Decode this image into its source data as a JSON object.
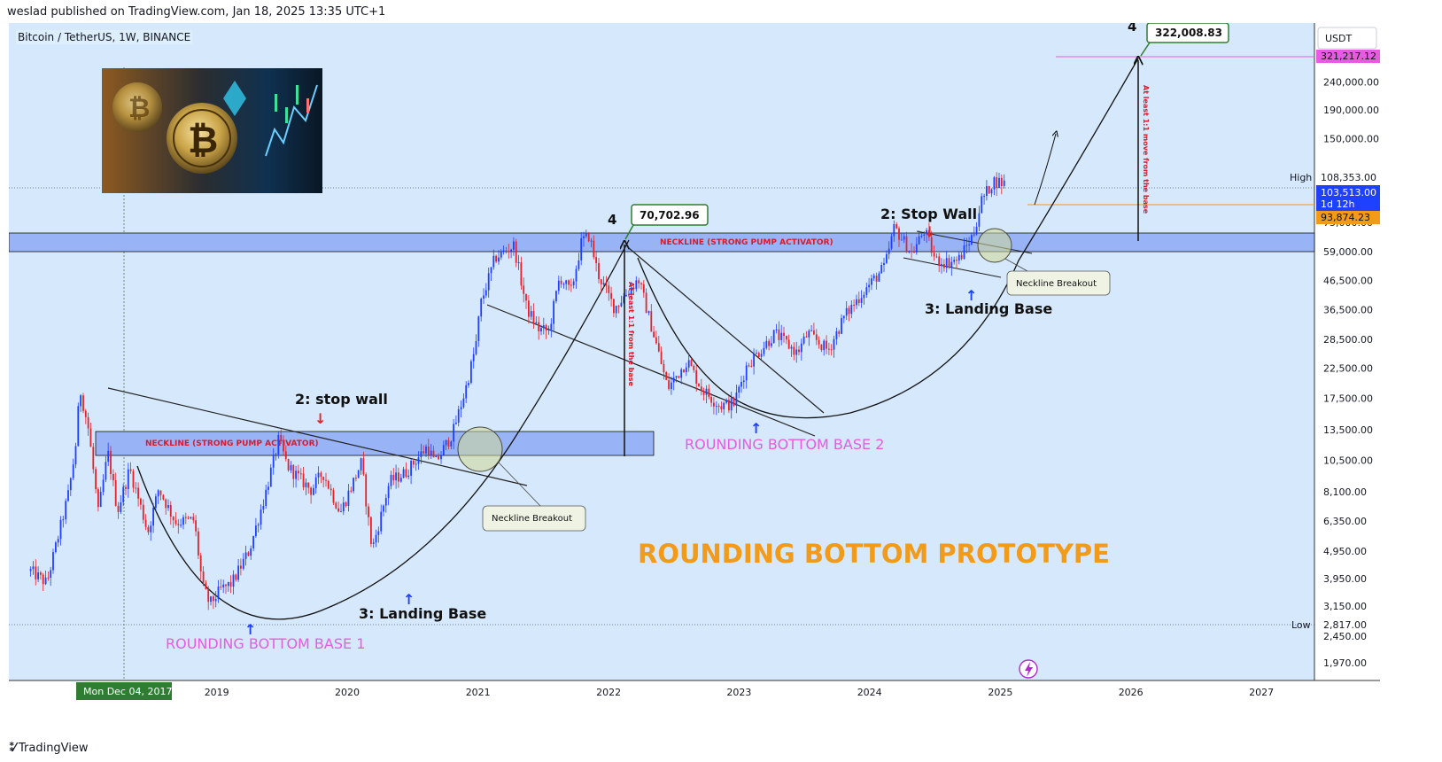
{
  "header": {
    "published": "weslad published on TradingView.com, Jan 18, 2025 13:35 UTC+1"
  },
  "symbol": {
    "title": "Bitcoin / TetherUS, 1W, BINANCE"
  },
  "footer": {
    "brand": "TradingView"
  },
  "colors": {
    "background": "#d6e8fb",
    "up": "#1e40ff",
    "down": "#e2242a",
    "neckline": "#98b4f6",
    "pink": "#e75be0",
    "orange": "#f29a19",
    "green": "#2e7d32"
  },
  "icons": [
    "tradingview-logo-icon",
    "lightning-icon",
    "bitcoin-tether-thumbnail"
  ],
  "chart_data": {
    "type": "candlestick",
    "title": "",
    "currency": "USDT",
    "y_scale": "log",
    "x_range": [
      "2017-06-01",
      "2027-06-01"
    ],
    "y_range": [
      1700,
      390000
    ],
    "x_ticks": [
      "2019",
      "2020",
      "2021",
      "2022",
      "2023",
      "2024",
      "2025",
      "2026",
      "2027"
    ],
    "y_ticks": [
      "240,000.00",
      "190,000.00",
      "150,000.00",
      "75,000.00",
      "59,000.00",
      "46,500.00",
      "36,500.00",
      "28,500.00",
      "22,500.00",
      "17,500.00",
      "13,500.00",
      "10,500.00",
      "8,100.00",
      "6,350.00",
      "4,950.00",
      "3,950.00",
      "3,150.00",
      "2,450.00",
      "1,970.00"
    ],
    "axis_labels": {
      "unit": "USDT",
      "target": "321,217.12",
      "high_label": "High",
      "high": "108,353.00",
      "last_price": "103,513.00",
      "countdown": "1d 12h",
      "previous": "93,874.23",
      "low_label": "Low",
      "low": "2,817.00",
      "crosshair_date": "Mon Dec 04, 2017"
    },
    "price_series": [
      [
        "2017-08-01",
        4200
      ],
      [
        "2017-09-15",
        3800
      ],
      [
        "2017-10-20",
        5800
      ],
      [
        "2017-11-15",
        8000
      ],
      [
        "2017-12-04",
        11500
      ],
      [
        "2017-12-17",
        19000
      ],
      [
        "2018-01-10",
        13500
      ],
      [
        "2018-02-06",
        6800
      ],
      [
        "2018-03-05",
        11200
      ],
      [
        "2018-04-01",
        6900
      ],
      [
        "2018-05-05",
        9800
      ],
      [
        "2018-06-25",
        5800
      ],
      [
        "2018-07-25",
        8300
      ],
      [
        "2018-09-10",
        6300
      ],
      [
        "2018-11-01",
        6400
      ],
      [
        "2018-11-25",
        3700
      ],
      [
        "2018-12-15",
        3200
      ],
      [
        "2019-01-15",
        3600
      ],
      [
        "2019-02-15",
        3800
      ],
      [
        "2019-04-05",
        5000
      ],
      [
        "2019-05-20",
        8000
      ],
      [
        "2019-06-26",
        12500
      ],
      [
        "2019-07-20",
        10000
      ],
      [
        "2019-09-25",
        8200
      ],
      [
        "2019-10-27",
        9500
      ],
      [
        "2019-12-15",
        6800
      ],
      [
        "2020-02-12",
        10300
      ],
      [
        "2020-03-13",
        5000
      ],
      [
        "2020-05-01",
        8800
      ],
      [
        "2020-06-15",
        9500
      ],
      [
        "2020-08-15",
        11800
      ],
      [
        "2020-09-05",
        10200
      ],
      [
        "2020-10-25",
        13200
      ],
      [
        "2020-11-30",
        19000
      ],
      [
        "2020-12-28",
        27000
      ],
      [
        "2021-01-10",
        38000
      ],
      [
        "2021-02-20",
        56000
      ],
      [
        "2021-04-14",
        62000
      ],
      [
        "2021-05-19",
        37000
      ],
      [
        "2021-06-22",
        31000
      ],
      [
        "2021-07-20",
        30500
      ],
      [
        "2021-08-20",
        48000
      ],
      [
        "2021-09-20",
        42000
      ],
      [
        "2021-10-20",
        64000
      ],
      [
        "2021-11-10",
        67500
      ],
      [
        "2021-12-05",
        49000
      ],
      [
        "2022-01-20",
        37000
      ],
      [
        "2022-03-28",
        47000
      ],
      [
        "2022-05-12",
        29000
      ],
      [
        "2022-06-18",
        19000
      ],
      [
        "2022-08-12",
        24000
      ],
      [
        "2022-09-20",
        19000
      ],
      [
        "2022-11-10",
        16500
      ],
      [
        "2022-12-20",
        16800
      ],
      [
        "2023-01-25",
        23000
      ],
      [
        "2023-04-14",
        30000
      ],
      [
        "2023-06-15",
        25500
      ],
      [
        "2023-07-15",
        30000
      ],
      [
        "2023-09-10",
        26000
      ],
      [
        "2023-10-25",
        34500
      ],
      [
        "2023-12-15",
        42000
      ],
      [
        "2024-02-15",
        52000
      ],
      [
        "2024-03-13",
        72000
      ],
      [
        "2024-05-01",
        58000
      ],
      [
        "2024-06-05",
        70500
      ],
      [
        "2024-07-05",
        55000
      ],
      [
        "2024-08-05",
        54000
      ],
      [
        "2024-09-08",
        55000
      ],
      [
        "2024-10-20",
        68000
      ],
      [
        "2024-11-12",
        90000
      ],
      [
        "2024-12-15",
        106000
      ],
      [
        "2025-01-18",
        103513
      ]
    ],
    "annotations": {
      "neckline_label": "NECKLINE (STRONG PUMP ACTIVATOR)",
      "stop_wall_1": "2: stop wall",
      "landing_base_1": "3: Landing Base",
      "rounding_base_1": "ROUNDING BOTTOM BASE 1",
      "breakout_1": "Neckline Breakout",
      "wave_4_label": "4",
      "peak_value": "70,702.96",
      "measured_move_1": "At least 1:1 from the base",
      "rounding_base_2": "ROUNDING BOTTOM BASE 2",
      "stop_wall_2": "2: Stop Wall",
      "landing_base_2": "3: Landing Base",
      "breakout_2": "Neckline Breakout",
      "target_value": "322,008.83",
      "measured_move_2": "At least 1:1 move from the base",
      "headline": "ROUNDING BOTTOM PROTOTYPE"
    },
    "grid": false,
    "legend": "none"
  }
}
